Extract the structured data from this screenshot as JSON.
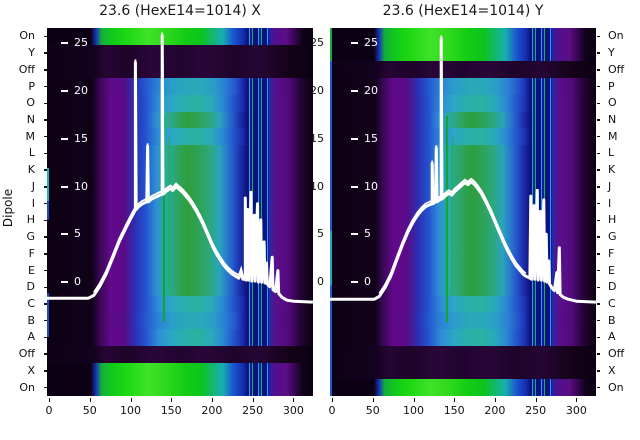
{
  "figure": {
    "background": "#ffffff",
    "ylabel": "Dipole"
  },
  "chart_data": {
    "type": "heatmap",
    "description": "Two beam-profile heatmaps with overlaid white signal curves",
    "ylabel": "Dipole",
    "row_labels": [
      "On",
      "Y",
      "Off",
      "P",
      "O",
      "N",
      "M",
      "L",
      "K",
      "J",
      "I",
      "H",
      "G",
      "F",
      "E",
      "D",
      "C",
      "B",
      "A",
      "Off",
      "X",
      "On"
    ],
    "x_ticks": [
      0,
      50,
      100,
      150,
      200,
      250,
      300
    ],
    "y_ticks": [
      25,
      20,
      15,
      10,
      5,
      0
    ],
    "x_range": [
      -2.5,
      324.1
    ],
    "y_range": [
      -11.93,
      26.6
    ],
    "curve_color": "#ffffff",
    "stripe_colors": [
      "#0a1185",
      "#2ba0e0",
      "#101c9e",
      "#15b545"
    ],
    "green_vlines": [
      {
        "x": 140,
        "top_pct": 24,
        "h_pct": 56,
        "w": 2,
        "color": "#12a534"
      },
      {
        "x": 147,
        "top_pct": 30,
        "h_pct": 42,
        "w": 1,
        "color": "#18b04a"
      }
    ],
    "palettes": {
      "greenband": [
        [
          0,
          "#0c0114"
        ],
        [
          16.5,
          "#0c0114"
        ],
        [
          18.5,
          "#1a33bb"
        ],
        [
          20.5,
          "#13ad3e"
        ],
        [
          24,
          "#10c81c"
        ],
        [
          30,
          "#1ed813"
        ],
        [
          38,
          "#3fe22a"
        ],
        [
          45,
          "#2ed81c"
        ],
        [
          52,
          "#14cc14"
        ],
        [
          58,
          "#0cc41e"
        ],
        [
          62,
          "#12b86a"
        ],
        [
          66,
          "#18aeb0"
        ],
        [
          70,
          "#1a57cd"
        ],
        [
          73.5,
          "#1630b4"
        ],
        [
          75.5,
          "#0c1578"
        ],
        [
          83,
          "#1228a8"
        ],
        [
          85.5,
          "#51108f"
        ],
        [
          90,
          "#5c0d85"
        ],
        [
          93.5,
          "#33054d"
        ],
        [
          96,
          "#10021a"
        ],
        [
          100,
          "#0a0110"
        ]
      ],
      "darkband": [
        [
          0,
          "#0e0115"
        ],
        [
          18,
          "#140220"
        ],
        [
          22,
          "#260535"
        ],
        [
          30,
          "#1e0429"
        ],
        [
          40,
          "#2a0639"
        ],
        [
          50,
          "#220430"
        ],
        [
          60,
          "#2a0639"
        ],
        [
          70,
          "#1e042a"
        ],
        [
          80,
          "#260535"
        ],
        [
          88,
          "#18031f"
        ],
        [
          100,
          "#0b0110"
        ]
      ],
      "maingreen": [
        [
          0,
          "#0d0115"
        ],
        [
          17,
          "#11021a"
        ],
        [
          20,
          "#3a0757"
        ],
        [
          24,
          "#62098c"
        ],
        [
          29,
          "#5a0b88"
        ],
        [
          33,
          "#2c2eb2"
        ],
        [
          37,
          "#2452cf"
        ],
        [
          41,
          "#2e8fd6"
        ],
        [
          45,
          "#2aab9e"
        ],
        [
          49,
          "#2da566"
        ],
        [
          53,
          "#2f9e3c"
        ],
        [
          57,
          "#2da256"
        ],
        [
          61,
          "#2ca878"
        ],
        [
          65,
          "#29a3c0"
        ],
        [
          69,
          "#2767cf"
        ],
        [
          72.5,
          "#1d30b2"
        ],
        [
          75.5,
          "#0d1070"
        ],
        [
          83,
          "#1a2fae"
        ],
        [
          86,
          "#5a0f8c"
        ],
        [
          91,
          "#530a7c"
        ],
        [
          95,
          "#26043a"
        ],
        [
          100,
          "#0b0110"
        ]
      ],
      "maincyan": [
        [
          0,
          "#0d0115"
        ],
        [
          17,
          "#11021a"
        ],
        [
          20,
          "#3a0757"
        ],
        [
          24,
          "#62098c"
        ],
        [
          29,
          "#5a0b88"
        ],
        [
          33,
          "#2c2eb2"
        ],
        [
          37,
          "#2452cf"
        ],
        [
          42,
          "#2e8fd6"
        ],
        [
          47,
          "#2aa8c2"
        ],
        [
          52,
          "#29b0a8"
        ],
        [
          57,
          "#2bb2a0"
        ],
        [
          62,
          "#29a9bb"
        ],
        [
          66,
          "#2a8ad2"
        ],
        [
          70,
          "#2357cc"
        ],
        [
          73.5,
          "#1c2eb0"
        ],
        [
          75.5,
          "#0d1070"
        ],
        [
          83,
          "#1a2fae"
        ],
        [
          86,
          "#5a0f8c"
        ],
        [
          91,
          "#530a7c"
        ],
        [
          95,
          "#26043a"
        ],
        [
          100,
          "#0b0110"
        ]
      ],
      "mainblue": [
        [
          0,
          "#0d0115"
        ],
        [
          17,
          "#11021a"
        ],
        [
          20,
          "#3a0757"
        ],
        [
          24,
          "#600a8a"
        ],
        [
          29,
          "#570d86"
        ],
        [
          33,
          "#2b31b4"
        ],
        [
          37,
          "#2457d0"
        ],
        [
          42,
          "#2c85d6"
        ],
        [
          47,
          "#2a9fc8"
        ],
        [
          53,
          "#2aa8b8"
        ],
        [
          58,
          "#2aa8bb"
        ],
        [
          63,
          "#2a9bc8"
        ],
        [
          67,
          "#2a7ed2"
        ],
        [
          71,
          "#2453cc"
        ],
        [
          73.5,
          "#1c2eb0"
        ],
        [
          75.5,
          "#0d1070"
        ],
        [
          83,
          "#1a2fae"
        ],
        [
          86,
          "#580e8a"
        ],
        [
          91,
          "#500a78"
        ],
        [
          95,
          "#26043a"
        ],
        [
          100,
          "#0b0110"
        ]
      ]
    },
    "panels": [
      {
        "title": "23.6 (HexE14=1014) X",
        "row_palettes": [
          "greenband",
          "darkband",
          "darkband",
          "mainblue",
          "maincyan",
          "maingreen",
          "maincyan",
          "maingreen",
          "maingreen",
          "maingreen",
          "maingreen",
          "maingreen",
          "maingreen",
          "maingreen",
          "maingreen",
          "maingreen",
          "maincyan",
          "mainblue",
          "maincyan",
          "darkband",
          "greenband",
          "greenband"
        ],
        "curve": [
          [
            -2.5,
            -1.7
          ],
          [
            48,
            -1.7
          ],
          [
            55,
            -1.4
          ],
          [
            62,
            -0.5
          ],
          [
            70,
            0.8
          ],
          [
            78,
            2.5
          ],
          [
            86,
            4.2
          ],
          [
            94,
            5.6
          ],
          [
            100,
            6.6
          ],
          [
            105,
            7.4
          ],
          [
            106,
            7.6
          ],
          [
            106,
            23
          ],
          [
            107,
            7.6
          ],
          [
            110,
            7.9
          ],
          [
            115,
            8.2
          ],
          [
            120,
            8.4
          ],
          [
            121,
            14.2
          ],
          [
            122,
            8.4
          ],
          [
            126,
            8.7
          ],
          [
            131,
            8.9
          ],
          [
            136,
            9.1
          ],
          [
            139,
            9.2
          ],
          [
            139,
            25.8
          ],
          [
            140,
            9.2
          ],
          [
            144,
            9.5
          ],
          [
            149,
            9.8
          ],
          [
            152,
            9.6
          ],
          [
            156,
            10
          ],
          [
            160,
            9.7
          ],
          [
            164,
            9.4
          ],
          [
            168,
            9
          ],
          [
            172,
            8.6
          ],
          [
            176,
            8.1
          ],
          [
            181,
            7.4
          ],
          [
            186,
            6.6
          ],
          [
            191,
            5.7
          ],
          [
            196,
            4.7
          ],
          [
            201,
            3.7
          ],
          [
            206,
            2.9
          ],
          [
            211,
            2.2
          ],
          [
            215,
            1.7
          ],
          [
            219,
            1.3
          ],
          [
            224,
            0.9
          ],
          [
            229,
            0.6
          ],
          [
            233,
            0.4
          ],
          [
            236,
            1.1
          ],
          [
            238,
            0.3
          ],
          [
            241,
            0.3
          ],
          [
            241,
            8.8
          ],
          [
            242,
            0.2
          ],
          [
            244,
            7.6
          ],
          [
            245,
            0.2
          ],
          [
            248,
            9.4
          ],
          [
            249,
            0.1
          ],
          [
            252,
            7
          ],
          [
            253,
            0.1
          ],
          [
            256,
            8.2
          ],
          [
            257,
            0
          ],
          [
            260,
            6.5
          ],
          [
            261,
            0
          ],
          [
            264,
            4.2
          ],
          [
            265,
            -0.1
          ],
          [
            267,
            2
          ],
          [
            268,
            -0.2
          ],
          [
            271,
            -0.5
          ],
          [
            274,
            2.6
          ],
          [
            275,
            -0.8
          ],
          [
            278,
            -1
          ],
          [
            281,
            1.2
          ],
          [
            282,
            -1.2
          ],
          [
            286,
            -1.6
          ],
          [
            292,
            -1.9
          ],
          [
            300,
            -2
          ],
          [
            324,
            -2.1
          ]
        ]
      },
      {
        "title": "23.6 (HexE14=1014) Y",
        "row_palettes": [
          "greenband",
          "greenband",
          "darkband",
          "mainblue",
          "maincyan",
          "maingreen",
          "maincyan",
          "maingreen",
          "maingreen",
          "maingreen",
          "maingreen",
          "maingreen",
          "maingreen",
          "maingreen",
          "maingreen",
          "maingreen",
          "maincyan",
          "mainblue",
          "maincyan",
          "darkband",
          "darkband",
          "greenband"
        ],
        "curve": [
          [
            -2.5,
            -1.8
          ],
          [
            52,
            -1.8
          ],
          [
            58,
            -1.5
          ],
          [
            65,
            -0.6
          ],
          [
            72,
            0.6
          ],
          [
            79,
            2.2
          ],
          [
            86,
            3.8
          ],
          [
            93,
            5.2
          ],
          [
            99,
            6.2
          ],
          [
            105,
            7
          ],
          [
            110,
            7.5
          ],
          [
            115,
            7.9
          ],
          [
            120,
            8.1
          ],
          [
            123,
            8.2
          ],
          [
            123,
            12.4
          ],
          [
            124,
            8.2
          ],
          [
            127,
            8.4
          ],
          [
            128,
            14
          ],
          [
            129,
            8.4
          ],
          [
            132,
            8.6
          ],
          [
            134,
            8.7
          ],
          [
            134,
            25.5
          ],
          [
            135,
            8.7
          ],
          [
            139,
            9
          ],
          [
            143,
            9.3
          ],
          [
            147,
            9.1
          ],
          [
            151,
            9.5
          ],
          [
            155,
            9.8
          ],
          [
            159,
            10.1
          ],
          [
            163,
            10.4
          ],
          [
            167,
            10.2
          ],
          [
            171,
            10.5
          ],
          [
            175,
            10.2
          ],
          [
            179,
            9.8
          ],
          [
            183,
            9.3
          ],
          [
            187,
            8.7
          ],
          [
            191,
            8
          ],
          [
            196,
            7.1
          ],
          [
            201,
            6.1
          ],
          [
            206,
            5.1
          ],
          [
            211,
            4.1
          ],
          [
            216,
            3.2
          ],
          [
            221,
            2.4
          ],
          [
            226,
            1.7
          ],
          [
            231,
            1.2
          ],
          [
            235,
            0.8
          ],
          [
            238,
            0.6
          ],
          [
            241,
            0.5
          ],
          [
            243,
            0.4
          ],
          [
            244,
            9
          ],
          [
            245,
            0.3
          ],
          [
            248,
            8
          ],
          [
            249,
            0.3
          ],
          [
            252,
            9.6
          ],
          [
            253,
            0.2
          ],
          [
            256,
            7.4
          ],
          [
            257,
            0.2
          ],
          [
            260,
            8.6
          ],
          [
            261,
            0.1
          ],
          [
            263,
            5
          ],
          [
            264,
            0
          ],
          [
            266,
            2.2
          ],
          [
            267,
            -0.2
          ],
          [
            270,
            -0.6
          ],
          [
            273,
            -0.9
          ],
          [
            276,
            1
          ],
          [
            277,
            -1.1
          ],
          [
            279,
            3.6
          ],
          [
            280,
            -1.3
          ],
          [
            284,
            -1.6
          ],
          [
            290,
            -1.8
          ],
          [
            300,
            -2
          ],
          [
            324,
            -2.1
          ]
        ]
      }
    ]
  }
}
